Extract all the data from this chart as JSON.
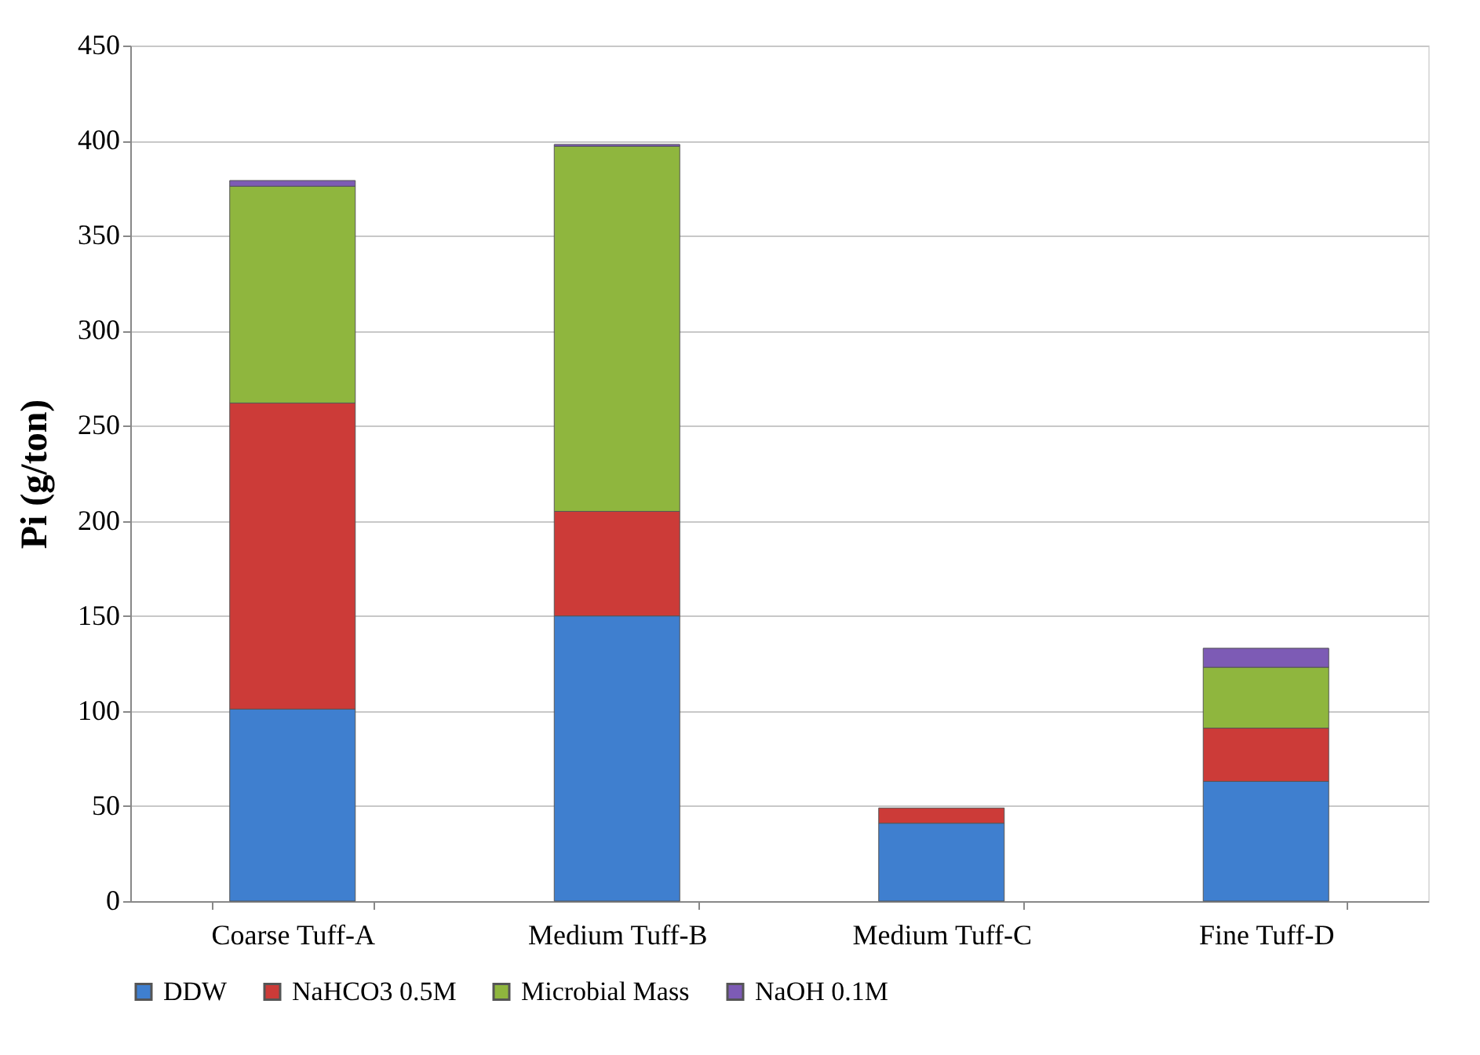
{
  "chart_data": {
    "type": "bar",
    "stacked": true,
    "ylabel": "Pi  (g/ton)",
    "categories": [
      "Coarse Tuff-A",
      "Medium Tuff-B",
      "Medium Tuff-C",
      "Fine Tuff-D"
    ],
    "series": [
      {
        "name": "DDW",
        "color": "#3f7fcf",
        "values": [
          101,
          150,
          41,
          63
        ]
      },
      {
        "name": "NaHCO3 0.5M",
        "color": "#cc3b38",
        "values": [
          161,
          55,
          8,
          28
        ]
      },
      {
        "name": "Microbial Mass",
        "color": "#8fb63e",
        "values": [
          114,
          192,
          null,
          32
        ]
      },
      {
        "name": "NaOH 0.1M",
        "color": "#7d5bb5",
        "values": [
          3,
          1,
          null,
          10
        ]
      }
    ],
    "ylim": [
      0,
      450
    ],
    "yticks": [
      0,
      50,
      100,
      150,
      200,
      250,
      300,
      350,
      400,
      450
    ],
    "grid": "y",
    "legend": "bottom"
  }
}
